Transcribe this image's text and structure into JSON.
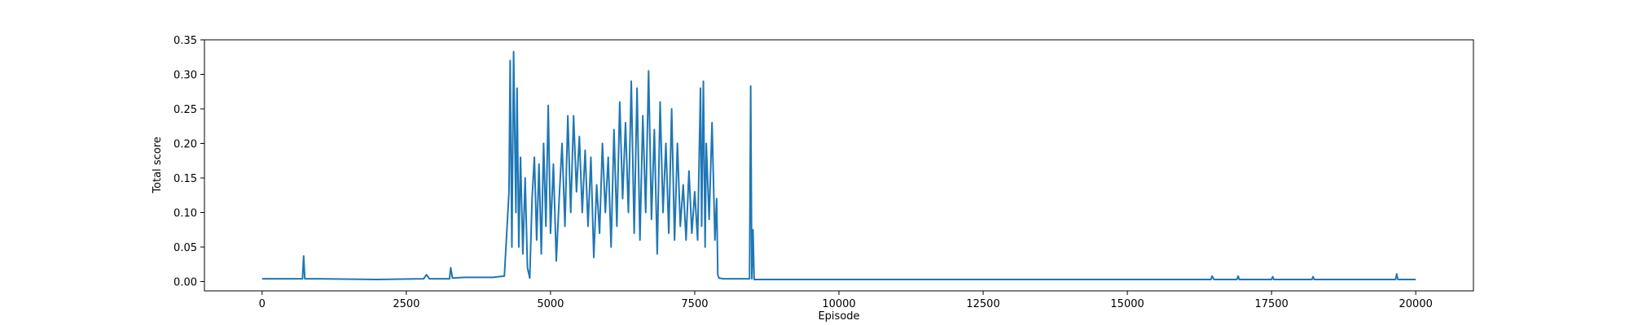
{
  "chart_data": {
    "type": "line",
    "xlabel": "Episode",
    "ylabel": "Total score",
    "xlim": [
      -1000,
      21000
    ],
    "ylim": [
      -0.0135,
      0.35
    ],
    "xticks": [
      0,
      2500,
      5000,
      7500,
      10000,
      12500,
      15000,
      17500,
      20000
    ],
    "yticks": [
      {
        "value": 0,
        "label": "0.00"
      },
      0.05,
      {
        "value": 0.1,
        "label": "0.10"
      },
      0.15,
      {
        "value": 0.2,
        "label": "0.20"
      },
      0.25,
      {
        "value": 0.3,
        "label": "0.30"
      },
      0.35
    ],
    "grid": false,
    "series": [
      {
        "color": "#1f77b4",
        "x": [
          0,
          500,
          700,
          720,
          740,
          1000,
          2000,
          2800,
          2850,
          2900,
          3250,
          3270,
          3300,
          3500,
          4000,
          4200,
          4280,
          4300,
          4330,
          4360,
          4400,
          4420,
          4450,
          4480,
          4520,
          4560,
          4600,
          4640,
          4680,
          4720,
          4760,
          4800,
          4840,
          4880,
          4920,
          4960,
          5000,
          5050,
          5100,
          5150,
          5200,
          5250,
          5300,
          5350,
          5400,
          5450,
          5500,
          5550,
          5600,
          5650,
          5700,
          5750,
          5800,
          5850,
          5900,
          5950,
          6000,
          6050,
          6100,
          6150,
          6200,
          6250,
          6300,
          6350,
          6400,
          6450,
          6500,
          6550,
          6600,
          6650,
          6700,
          6750,
          6800,
          6850,
          6900,
          6950,
          7000,
          7050,
          7100,
          7150,
          7200,
          7250,
          7300,
          7350,
          7400,
          7450,
          7500,
          7550,
          7600,
          7620,
          7650,
          7680,
          7700,
          7750,
          7800,
          7850,
          7880,
          7900,
          7920,
          8000,
          8450,
          8470,
          8490,
          8510,
          8530,
          10000,
          16450,
          16470,
          16500,
          16900,
          16920,
          16940,
          17500,
          17520,
          17540,
          18200,
          18220,
          18240,
          19650,
          19670,
          19690,
          20000
        ],
        "values": [
          0.004,
          0.004,
          0.004,
          0.037,
          0.004,
          0.004,
          0.003,
          0.004,
          0.01,
          0.004,
          0.004,
          0.02,
          0.005,
          0.006,
          0.006,
          0.008,
          0.13,
          0.32,
          0.05,
          0.333,
          0.1,
          0.28,
          0.05,
          0.18,
          0.04,
          0.15,
          0.02,
          0.005,
          0.12,
          0.18,
          0.06,
          0.17,
          0.04,
          0.2,
          0.08,
          0.255,
          0.07,
          0.17,
          0.03,
          0.12,
          0.2,
          0.08,
          0.24,
          0.1,
          0.24,
          0.13,
          0.21,
          0.1,
          0.19,
          0.08,
          0.18,
          0.035,
          0.14,
          0.07,
          0.2,
          0.1,
          0.18,
          0.05,
          0.22,
          0.08,
          0.26,
          0.12,
          0.23,
          0.1,
          0.29,
          0.07,
          0.28,
          0.06,
          0.24,
          0.1,
          0.305,
          0.09,
          0.22,
          0.04,
          0.26,
          0.1,
          0.2,
          0.07,
          0.25,
          0.06,
          0.2,
          0.08,
          0.14,
          0.06,
          0.16,
          0.07,
          0.13,
          0.06,
          0.28,
          0.08,
          0.29,
          0.05,
          0.2,
          0.09,
          0.23,
          0.06,
          0.12,
          0.01,
          0.005,
          0.004,
          0.004,
          0.283,
          0.004,
          0.075,
          0.003,
          0.003,
          0.003,
          0.008,
          0.003,
          0.003,
          0.008,
          0.003,
          0.003,
          0.007,
          0.003,
          0.003,
          0.007,
          0.003,
          0.003,
          0.011,
          0.003,
          0.003
        ]
      }
    ]
  }
}
